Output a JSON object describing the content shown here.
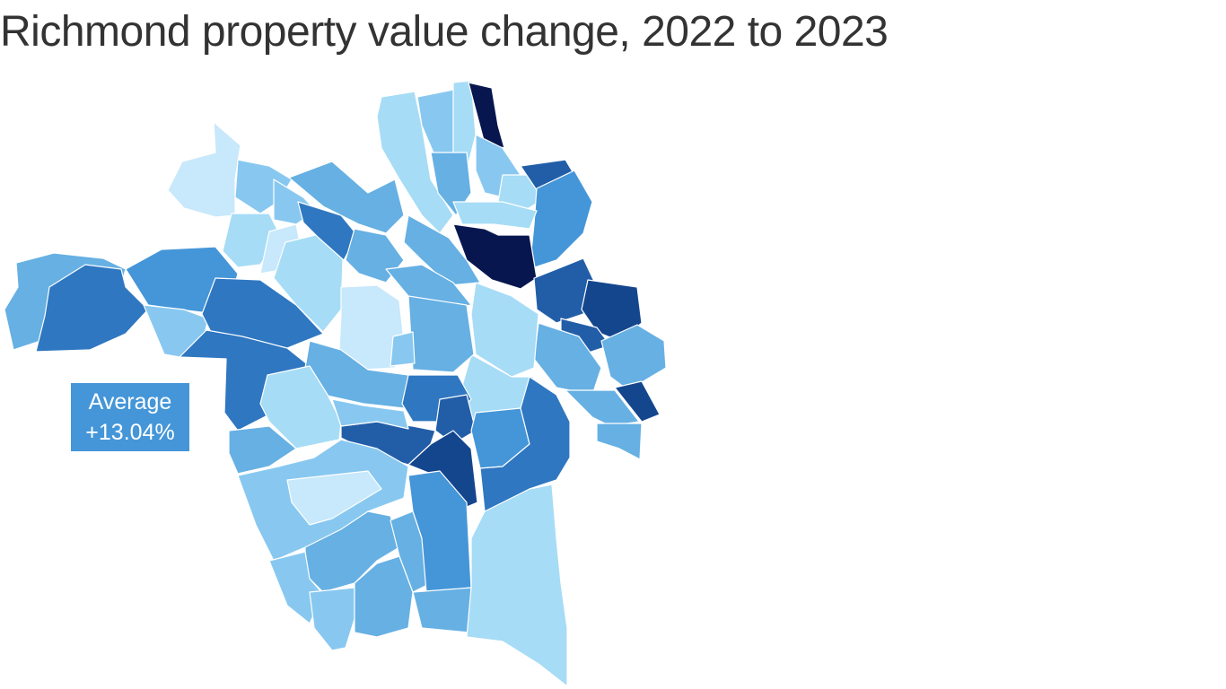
{
  "title": "Richmond property value change, 2022 to 2023",
  "callout": {
    "label": "Average",
    "value": "+13.04%"
  },
  "palette": {
    "lightest": "#c8e8fb",
    "light": "#a6dcf6",
    "light_mid": "#88c8f0",
    "mid": "#66b0e3",
    "mid_dark": "#4596d8",
    "dark": "#2f77c1",
    "darker": "#225ea8",
    "darkest_blue": "#14468d",
    "navy": "#081650"
  }
}
